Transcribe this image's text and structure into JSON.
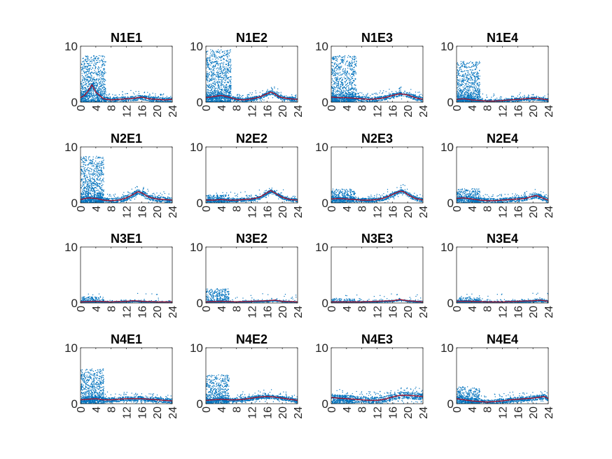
{
  "colors": {
    "scatter": "#0072BD",
    "trend": "#A2142F",
    "axis": "#262626"
  },
  "chart_data": [
    {
      "type": "scatter",
      "title": "N1E1",
      "xlim": [
        0,
        24
      ],
      "ylim": [
        0,
        10
      ],
      "xticks": [
        "0",
        "4",
        "8",
        "12",
        "16",
        "20",
        "24"
      ],
      "yticks": [
        "0",
        "10"
      ],
      "trend_x": [
        0,
        1,
        2,
        3,
        4,
        5,
        6,
        8,
        10,
        12,
        14,
        16,
        18,
        20,
        22,
        24
      ],
      "trend_y": [
        0.8,
        1.2,
        2.0,
        3.1,
        1.8,
        1.2,
        0.6,
        0.4,
        0.5,
        0.6,
        0.7,
        0.9,
        0.6,
        0.5,
        0.4,
        0.5
      ],
      "burst": [
        0,
        6.5,
        8
      ],
      "base_scatter": 0.7
    },
    {
      "type": "scatter",
      "title": "N1E2",
      "xlim": [
        0,
        24
      ],
      "ylim": [
        0,
        10
      ],
      "xticks": [
        "0",
        "4",
        "8",
        "12",
        "16",
        "20",
        "24"
      ],
      "yticks": [
        "0",
        "10"
      ],
      "trend_x": [
        0,
        2,
        4,
        6,
        8,
        10,
        12,
        14,
        16,
        17,
        18,
        19,
        20,
        22,
        24
      ],
      "trend_y": [
        0.8,
        1.0,
        1.2,
        0.9,
        0.5,
        0.4,
        0.6,
        0.9,
        1.5,
        1.8,
        1.5,
        1.0,
        0.8,
        0.6,
        0.5
      ],
      "burst": [
        0,
        6.5,
        9
      ],
      "base_scatter": 0.6
    },
    {
      "type": "scatter",
      "title": "N1E3",
      "xlim": [
        0,
        24
      ],
      "ylim": [
        0,
        10
      ],
      "xticks": [
        "0",
        "4",
        "8",
        "12",
        "16",
        "20",
        "24"
      ],
      "yticks": [
        "0",
        "10"
      ],
      "trend_x": [
        0,
        2,
        4,
        6,
        8,
        10,
        12,
        14,
        16,
        18,
        19,
        20,
        22,
        24
      ],
      "trend_y": [
        0.9,
        0.8,
        0.8,
        0.7,
        0.6,
        0.5,
        0.6,
        0.8,
        1.2,
        1.5,
        1.4,
        1.3,
        0.8,
        0.5
      ],
      "burst": [
        0,
        6.5,
        8
      ],
      "base_scatter": 0.7
    },
    {
      "type": "scatter",
      "title": "N1E4",
      "xlim": [
        0,
        24
      ],
      "ylim": [
        0,
        10
      ],
      "xticks": [
        "0",
        "4",
        "8",
        "12",
        "16",
        "20",
        "24"
      ],
      "yticks": [
        "0",
        "10"
      ],
      "trend_x": [
        0,
        2,
        4,
        6,
        8,
        10,
        12,
        14,
        16,
        18,
        20,
        22,
        24
      ],
      "trend_y": [
        0.5,
        0.6,
        0.4,
        0.3,
        0.2,
        0.2,
        0.3,
        0.4,
        0.5,
        0.6,
        0.7,
        0.6,
        0.4
      ],
      "burst": [
        0,
        6,
        7
      ],
      "base_scatter": 0.5
    },
    {
      "type": "scatter",
      "title": "N2E1",
      "xlim": [
        0,
        24
      ],
      "ylim": [
        0,
        10
      ],
      "xticks": [
        "0",
        "4",
        "8",
        "12",
        "16",
        "20",
        "24"
      ],
      "yticks": [
        "0",
        "10"
      ],
      "trend_x": [
        0,
        2,
        4,
        6,
        8,
        10,
        12,
        14,
        15,
        16,
        18,
        20,
        22,
        24
      ],
      "trend_y": [
        0.6,
        0.9,
        0.8,
        0.5,
        0.4,
        0.5,
        0.9,
        1.6,
        2.0,
        1.8,
        1.0,
        0.7,
        0.6,
        0.5
      ],
      "burst": [
        0,
        6,
        8
      ],
      "base_scatter": 0.8
    },
    {
      "type": "scatter",
      "title": "N2E2",
      "xlim": [
        0,
        24
      ],
      "ylim": [
        0,
        10
      ],
      "xticks": [
        "0",
        "4",
        "8",
        "12",
        "16",
        "20",
        "24"
      ],
      "yticks": [
        "0",
        "10"
      ],
      "trend_x": [
        0,
        2,
        4,
        6,
        8,
        10,
        12,
        14,
        16,
        17,
        18,
        20,
        22,
        24
      ],
      "trend_y": [
        0.5,
        0.5,
        0.6,
        0.5,
        0.5,
        0.6,
        0.7,
        1.0,
        1.8,
        2.2,
        1.8,
        1.0,
        0.6,
        0.5
      ],
      "burst": [
        0,
        6,
        1.5
      ],
      "base_scatter": 0.5
    },
    {
      "type": "scatter",
      "title": "N2E3",
      "xlim": [
        0,
        24
      ],
      "ylim": [
        0,
        10
      ],
      "xticks": [
        "0",
        "4",
        "8",
        "12",
        "16",
        "20",
        "24"
      ],
      "yticks": [
        "0",
        "10"
      ],
      "trend_x": [
        0,
        2,
        4,
        6,
        8,
        10,
        12,
        14,
        16,
        18,
        19,
        20,
        22,
        24
      ],
      "trend_y": [
        0.7,
        0.8,
        0.7,
        0.6,
        0.5,
        0.5,
        0.6,
        0.9,
        1.5,
        2.1,
        2.0,
        1.5,
        0.8,
        0.5
      ],
      "burst": [
        0,
        6,
        2.5
      ],
      "base_scatter": 0.6
    },
    {
      "type": "scatter",
      "title": "N2E4",
      "xlim": [
        0,
        24
      ],
      "ylim": [
        0,
        10
      ],
      "xticks": [
        "0",
        "4",
        "8",
        "12",
        "16",
        "20",
        "24"
      ],
      "yticks": [
        "0",
        "10"
      ],
      "trend_x": [
        0,
        2,
        4,
        6,
        8,
        10,
        12,
        14,
        16,
        18,
        20,
        21,
        22,
        24
      ],
      "trend_y": [
        0.8,
        0.9,
        0.7,
        0.5,
        0.4,
        0.4,
        0.5,
        0.6,
        0.7,
        0.8,
        1.2,
        1.3,
        1.0,
        0.5
      ],
      "burst": [
        0,
        6,
        2.5
      ],
      "base_scatter": 0.7
    },
    {
      "type": "scatter",
      "title": "N3E1",
      "xlim": [
        0,
        24
      ],
      "ylim": [
        0,
        10
      ],
      "xticks": [
        "0",
        "4",
        "8",
        "12",
        "16",
        "20",
        "24"
      ],
      "yticks": [
        "0",
        "10"
      ],
      "trend_x": [
        0,
        4,
        8,
        12,
        14,
        16,
        20,
        24
      ],
      "trend_y": [
        0.2,
        0.3,
        0.2,
        0.3,
        0.4,
        0.3,
        0.2,
        0.2
      ],
      "burst": [
        0,
        6,
        1.2
      ],
      "base_scatter": 0.2
    },
    {
      "type": "scatter",
      "title": "N3E2",
      "xlim": [
        0,
        24
      ],
      "ylim": [
        0,
        10
      ],
      "xticks": [
        "0",
        "4",
        "8",
        "12",
        "16",
        "20",
        "24"
      ],
      "yticks": [
        "0",
        "10"
      ],
      "trend_x": [
        0,
        4,
        8,
        12,
        16,
        18,
        20,
        24
      ],
      "trend_y": [
        0.2,
        0.3,
        0.2,
        0.3,
        0.4,
        0.5,
        0.3,
        0.2
      ],
      "burst": [
        0,
        6,
        2.5
      ],
      "base_scatter": 0.2
    },
    {
      "type": "scatter",
      "title": "N3E3",
      "xlim": [
        0,
        24
      ],
      "ylim": [
        0,
        10
      ],
      "xticks": [
        "0",
        "4",
        "8",
        "12",
        "16",
        "20",
        "24"
      ],
      "yticks": [
        "0",
        "10"
      ],
      "trend_x": [
        0,
        4,
        8,
        12,
        16,
        18,
        20,
        24
      ],
      "trend_y": [
        0.2,
        0.2,
        0.2,
        0.3,
        0.4,
        0.6,
        0.4,
        0.2
      ],
      "burst": [
        0,
        6,
        0.8
      ],
      "base_scatter": 0.2
    },
    {
      "type": "scatter",
      "title": "N3E4",
      "xlim": [
        0,
        24
      ],
      "ylim": [
        0,
        10
      ],
      "xticks": [
        "0",
        "4",
        "8",
        "12",
        "16",
        "20",
        "24"
      ],
      "yticks": [
        "0",
        "10"
      ],
      "trend_x": [
        0,
        4,
        8,
        12,
        16,
        20,
        22,
        24
      ],
      "trend_y": [
        0.3,
        0.3,
        0.2,
        0.2,
        0.3,
        0.4,
        0.5,
        0.3
      ],
      "burst": [
        0,
        6,
        1.0
      ],
      "base_scatter": 0.3
    },
    {
      "type": "scatter",
      "title": "N4E1",
      "xlim": [
        0,
        24
      ],
      "ylim": [
        0,
        10
      ],
      "xticks": [
        "0",
        "4",
        "8",
        "12",
        "16",
        "20",
        "24"
      ],
      "yticks": [
        "0",
        "10"
      ],
      "trend_x": [
        0,
        2,
        4,
        6,
        8,
        10,
        12,
        14,
        16,
        18,
        20,
        22,
        24
      ],
      "trend_y": [
        0.7,
        0.8,
        0.9,
        0.7,
        0.7,
        0.8,
        0.9,
        0.9,
        0.9,
        0.8,
        0.7,
        0.6,
        0.5
      ],
      "burst": [
        0,
        6,
        6
      ],
      "base_scatter": 0.7
    },
    {
      "type": "scatter",
      "title": "N4E2",
      "xlim": [
        0,
        24
      ],
      "ylim": [
        0,
        10
      ],
      "xticks": [
        "0",
        "4",
        "8",
        "12",
        "16",
        "20",
        "24"
      ],
      "yticks": [
        "0",
        "10"
      ],
      "trend_x": [
        0,
        2,
        4,
        6,
        8,
        10,
        12,
        14,
        16,
        18,
        20,
        22,
        24
      ],
      "trend_y": [
        0.6,
        0.7,
        0.8,
        0.7,
        0.7,
        0.8,
        1.0,
        1.2,
        1.3,
        1.2,
        1.0,
        0.8,
        0.6
      ],
      "burst": [
        0,
        6,
        5
      ],
      "base_scatter": 0.6
    },
    {
      "type": "scatter",
      "title": "N4E3",
      "xlim": [
        0,
        24
      ],
      "ylim": [
        0,
        10
      ],
      "xticks": [
        "0",
        "4",
        "8",
        "12",
        "16",
        "20",
        "24"
      ],
      "yticks": [
        "0",
        "10"
      ],
      "trend_x": [
        0,
        2,
        4,
        6,
        8,
        10,
        12,
        14,
        16,
        18,
        20,
        22,
        24
      ],
      "trend_y": [
        1.1,
        1.0,
        0.9,
        0.8,
        0.7,
        0.6,
        0.6,
        0.8,
        1.2,
        1.5,
        1.5,
        1.4,
        1.3
      ],
      "burst": [
        0,
        6,
        1.5
      ],
      "base_scatter": 1.0
    },
    {
      "type": "scatter",
      "title": "N4E4",
      "xlim": [
        0,
        24
      ],
      "ylim": [
        0,
        10
      ],
      "xticks": [
        "0",
        "4",
        "8",
        "12",
        "16",
        "20",
        "24"
      ],
      "yticks": [
        "0",
        "10"
      ],
      "trend_x": [
        0,
        2,
        4,
        6,
        8,
        10,
        12,
        14,
        16,
        18,
        20,
        22,
        23,
        24
      ],
      "trend_y": [
        0.9,
        0.7,
        0.5,
        0.4,
        0.3,
        0.4,
        0.5,
        0.7,
        0.8,
        0.9,
        1.0,
        1.2,
        1.3,
        0.9
      ],
      "burst": [
        0,
        6,
        3
      ],
      "base_scatter": 0.7
    }
  ]
}
